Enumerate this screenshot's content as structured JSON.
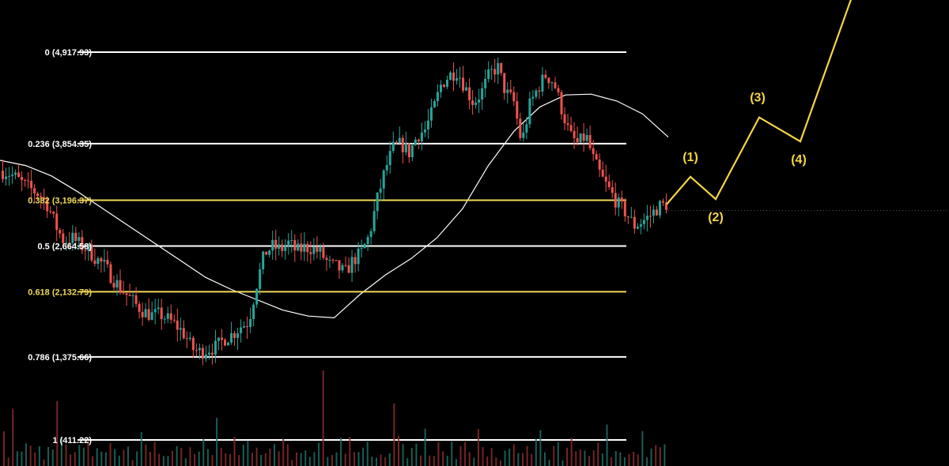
{
  "chart_data": {
    "type": "candlestick",
    "title": "",
    "xlabel": "",
    "ylabel": "",
    "ylim": [
      411.22,
      4917.93
    ],
    "grid": false,
    "colors": {
      "background": "#000000",
      "level_white": "#ffffff",
      "level_gold": "#f0d85a",
      "candle_up": "#26a69a",
      "candle_down": "#ef5350",
      "moving_average": "#ffffff",
      "projection": "#f5d547"
    },
    "fib_levels": [
      {
        "label": "0 (4,917.93)",
        "ratio": 0,
        "price": 4917.93,
        "color": "white"
      },
      {
        "label": "0.236 (3,854.35)",
        "ratio": 0.236,
        "price": 3854.35,
        "color": "white"
      },
      {
        "label": "0.382 (3,196.37)",
        "ratio": 0.382,
        "price": 3196.37,
        "color": "gold"
      },
      {
        "label": "0.5 (2,664.58)",
        "ratio": 0.5,
        "price": 2664.58,
        "color": "white"
      },
      {
        "label": "0.618 (2,132.79)",
        "ratio": 0.618,
        "price": 2132.79,
        "color": "gold"
      },
      {
        "label": "0.786 (1,375.66)",
        "ratio": 0.786,
        "price": 1375.66,
        "color": "white"
      },
      {
        "label": "1 (411.22)",
        "ratio": 1,
        "price": 411.22,
        "color": "white"
      }
    ],
    "price_path": [
      3540,
      3520,
      3460,
      3380,
      3320,
      3260,
      3140,
      2900,
      2720,
      2760,
      2680,
      2620,
      2520,
      2440,
      2300,
      2180,
      2080,
      1980,
      1900,
      1860,
      1870,
      1810,
      1740,
      1640,
      1470,
      1430,
      1470,
      1490,
      1590,
      1640,
      1730,
      1780,
      2220,
      2580,
      2660,
      2620,
      2700,
      2600,
      2650,
      2640,
      2580,
      2450,
      2420,
      2350,
      2500,
      2580,
      2780,
      3200,
      3550,
      3800,
      3850,
      3750,
      3950,
      4020,
      4250,
      4550,
      4650,
      4700,
      4500,
      4330,
      4450,
      4660,
      4750,
      4450,
      4350,
      3850,
      4300,
      4500,
      4650,
      4570,
      4250,
      3950,
      3850,
      3950,
      3650,
      3450,
      3300,
      3150,
      3050,
      2900,
      2950,
      3020,
      3120,
      3150
    ],
    "moving_average_path": [
      3660,
      3600,
      3480,
      3300,
      3100,
      2900,
      2700,
      2500,
      2300,
      2160,
      2040,
      1920,
      1850,
      1830,
      2100,
      2330,
      2520,
      2760,
      3100,
      3600,
      4000,
      4280,
      4420,
      4430,
      4350,
      4200,
      3930
    ],
    "volume_levels": [
      0.6,
      0.3,
      0.8,
      0.2,
      0.4,
      0.3,
      0.5,
      0.2,
      0.3,
      0.2,
      0.3,
      0.4,
      1.0,
      0.5,
      0.3,
      0.2,
      0.4,
      0.6,
      0.3,
      0.5,
      0.2,
      0.3,
      0.4,
      0.2,
      0.3,
      0.5,
      0.2,
      0.3,
      0.4,
      0.2,
      0.3,
      0.5,
      0.3,
      0.2,
      0.4,
      0.3,
      0.2,
      0.3,
      0.5,
      0.6,
      0.4,
      0.2,
      0.3,
      0.2,
      0.4,
      0.5,
      0.3,
      0.2,
      0.7,
      0.4,
      0.2,
      0.3,
      0.4,
      0.2,
      0.3,
      0.5,
      0.2,
      0.3,
      0.4,
      0.2,
      0.6,
      0.3,
      0.2,
      0.5,
      0.3,
      0.2,
      0.3,
      0.4,
      0.5,
      0.2,
      0.3,
      0.5,
      0.6,
      0.3,
      0.2,
      0.4
    ],
    "projection": {
      "points": [
        3150,
        3470,
        3210,
        4160,
        3880,
        5940
      ],
      "wave_labels": [
        "(1)",
        "(2)",
        "(3)",
        "(4)"
      ]
    }
  }
}
